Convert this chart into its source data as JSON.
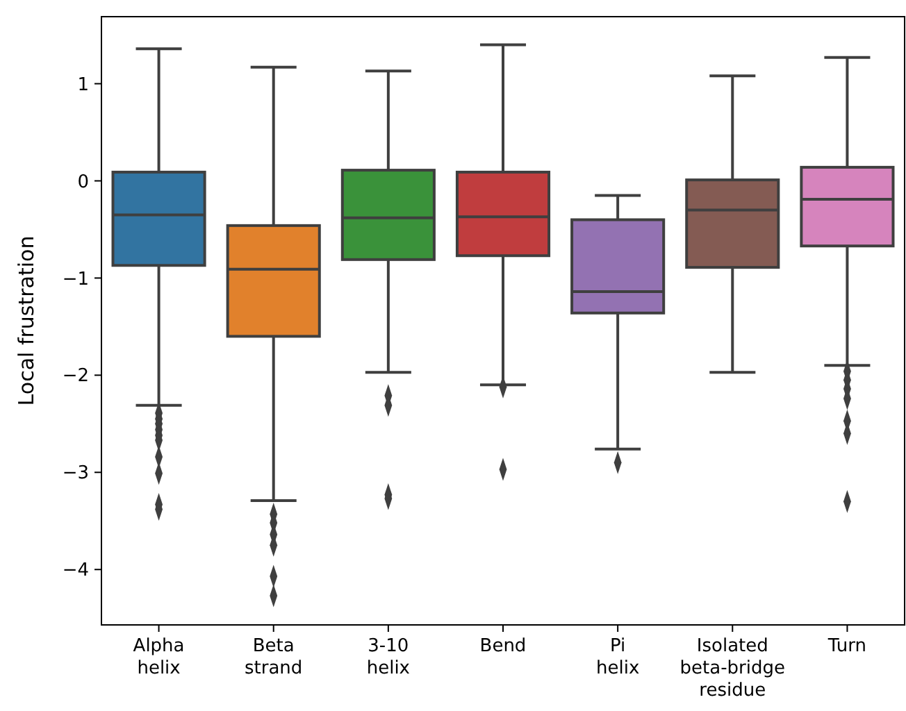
{
  "chart_data": {
    "type": "box",
    "ylabel": "Local frustration",
    "categories": [
      "Alpha\nhelix",
      "Beta\nstrand",
      "3-10\nhelix",
      "Bend",
      "Pi\nhelix",
      "Isolated\nbeta-bridge\nresidue",
      "Turn"
    ],
    "colors": [
      "#3274a1",
      "#e1812c",
      "#3a923a",
      "#c03d3e",
      "#9372b2",
      "#845b53",
      "#d684bd"
    ],
    "boxes": [
      {
        "low": -2.31,
        "q1": -0.87,
        "median": -0.35,
        "q3": 0.09,
        "high": 1.36,
        "outliers": [
          -2.39,
          -2.45,
          -2.5,
          -2.56,
          -2.62,
          -2.67,
          -2.84,
          -3.01,
          -3.33,
          -3.38
        ]
      },
      {
        "low": -3.29,
        "q1": -1.6,
        "median": -0.91,
        "q3": -0.46,
        "high": 1.17,
        "outliers": [
          -3.43,
          -3.52,
          -3.64,
          -3.75,
          -4.07,
          -4.27
        ]
      },
      {
        "low": -1.97,
        "q1": -0.81,
        "median": -0.38,
        "q3": 0.11,
        "high": 1.13,
        "outliers": [
          -2.21,
          -2.31,
          -3.23,
          -3.27
        ]
      },
      {
        "low": -2.1,
        "q1": -0.77,
        "median": -0.37,
        "q3": 0.09,
        "high": 1.4,
        "outliers": [
          -2.12,
          -2.97
        ]
      },
      {
        "low": -2.76,
        "q1": -1.36,
        "median": -1.14,
        "q3": -0.4,
        "high": -0.15,
        "outliers": [
          -2.9
        ]
      },
      {
        "low": -1.97,
        "q1": -0.89,
        "median": -0.3,
        "q3": 0.01,
        "high": 1.08
      },
      {
        "low": -1.9,
        "q1": -0.67,
        "median": -0.19,
        "q3": 0.14,
        "high": 1.27,
        "outliers": [
          -1.96,
          -2.05,
          -2.14,
          -2.24,
          -2.47,
          -2.6,
          -3.3
        ]
      }
    ],
    "ylim": [
      -4.57,
      1.69
    ],
    "yticks": [
      {
        "value": -4,
        "label": "−4"
      },
      {
        "value": -3,
        "label": "−3"
      },
      {
        "value": -2,
        "label": "−2"
      },
      {
        "value": -1,
        "label": "−1"
      },
      0,
      1
    ],
    "marker": "diamond"
  }
}
